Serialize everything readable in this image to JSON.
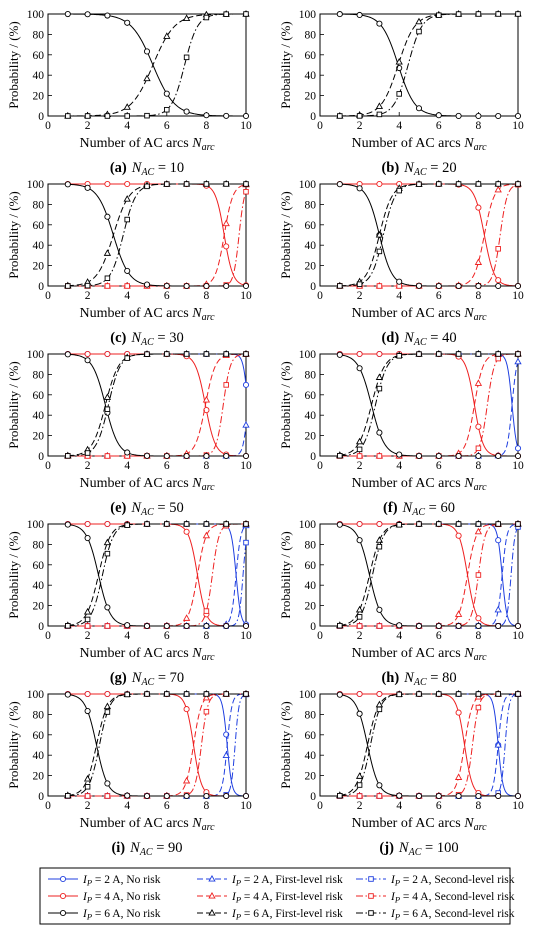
{
  "axis_labels": {
    "ylabel": "Probability / (%)",
    "xlabel_main": "Number of AC arcs ",
    "xlabel_sym": "N",
    "xlabel_sub": "arc"
  },
  "colors": {
    "ip2": "#1f3fe0",
    "ip4": "#ee2020",
    "ip6": "#000000"
  },
  "chart_data": [
    {
      "type": "line",
      "letter": "(a)",
      "nac": "10",
      "xlim": [
        0,
        10
      ],
      "ylim": [
        0,
        100
      ],
      "xticks": [
        0,
        2,
        4,
        6,
        8,
        10
      ],
      "yticks": [
        0,
        20,
        40,
        60,
        80,
        100
      ],
      "curves": [
        {
          "ip": "6 A",
          "risk": "No risk",
          "c": 5.3,
          "s": -0.55
        },
        {
          "ip": "6 A",
          "risk": "First-level risk",
          "c": 5.3,
          "s": 0.55
        },
        {
          "ip": "6 A",
          "risk": "Second-level risk",
          "c": 6.9,
          "s": 0.33
        }
      ]
    },
    {
      "type": "line",
      "letter": "(b)",
      "nac": "20",
      "xlim": [
        0,
        10
      ],
      "ylim": [
        0,
        100
      ],
      "xticks": [
        0,
        2,
        4,
        6,
        8,
        10
      ],
      "yticks": [
        0,
        20,
        40,
        60,
        80,
        100
      ],
      "curves": [
        {
          "ip": "6 A",
          "risk": "No risk",
          "c": 3.95,
          "s": -0.42
        },
        {
          "ip": "6 A",
          "risk": "First-level risk",
          "c": 3.95,
          "s": 0.42
        },
        {
          "ip": "6 A",
          "risk": "Second-level risk",
          "c": 4.45,
          "s": 0.35
        }
      ]
    },
    {
      "type": "line",
      "letter": "(c)",
      "nac": "30",
      "xlim": [
        0,
        10
      ],
      "ylim": [
        0,
        100
      ],
      "xticks": [
        0,
        2,
        4,
        6,
        8,
        10
      ],
      "yticks": [
        0,
        20,
        40,
        60,
        80,
        100
      ],
      "curves": [
        {
          "ip": "4 A",
          "risk": "No risk",
          "c": 8.9,
          "s": -0.22
        },
        {
          "ip": "4 A",
          "risk": "First-level risk",
          "c": 8.9,
          "s": 0.22
        },
        {
          "ip": "4 A",
          "risk": "Second-level risk",
          "c": 9.65,
          "s": 0.14
        },
        {
          "ip": "6 A",
          "risk": "No risk",
          "c": 3.3,
          "s": -0.4
        },
        {
          "ip": "6 A",
          "risk": "First-level risk",
          "c": 3.3,
          "s": 0.4
        },
        {
          "ip": "6 A",
          "risk": "Second-level risk",
          "c": 3.8,
          "s": 0.32
        }
      ]
    },
    {
      "type": "line",
      "letter": "(d)",
      "nac": "40",
      "xlim": [
        0,
        10
      ],
      "ylim": [
        0,
        100
      ],
      "xticks": [
        0,
        2,
        4,
        6,
        8,
        10
      ],
      "yticks": [
        0,
        20,
        40,
        60,
        80,
        100
      ],
      "curves": [
        {
          "ip": "4 A",
          "risk": "No risk",
          "c": 8.3,
          "s": -0.25
        },
        {
          "ip": "4 A",
          "risk": "First-level risk",
          "c": 8.3,
          "s": 0.25
        },
        {
          "ip": "4 A",
          "risk": "Second-level risk",
          "c": 9.1,
          "s": 0.18
        },
        {
          "ip": "6 A",
          "risk": "No risk",
          "c": 3.0,
          "s": -0.32
        },
        {
          "ip": "6 A",
          "risk": "First-level risk",
          "c": 3.0,
          "s": 0.32
        },
        {
          "ip": "6 A",
          "risk": "Second-level risk",
          "c": 3.2,
          "s": 0.3
        }
      ]
    },
    {
      "type": "line",
      "letter": "(e)",
      "nac": "50",
      "xlim": [
        0,
        10
      ],
      "ylim": [
        0,
        100
      ],
      "xticks": [
        0,
        2,
        4,
        6,
        8,
        10
      ],
      "yticks": [
        0,
        20,
        40,
        60,
        80,
        100
      ],
      "curves": [
        {
          "ip": "2 A",
          "risk": "No risk",
          "c": 10.1,
          "s": -0.12
        },
        {
          "ip": "2 A",
          "risk": "First-level risk",
          "c": 10.1,
          "s": 0.12
        },
        {
          "ip": "4 A",
          "risk": "No risk",
          "c": 7.95,
          "s": -0.25
        },
        {
          "ip": "4 A",
          "risk": "First-level risk",
          "c": 7.95,
          "s": 0.25
        },
        {
          "ip": "4 A",
          "risk": "Second-level risk",
          "c": 8.85,
          "s": 0.18
        },
        {
          "ip": "6 A",
          "risk": "No risk",
          "c": 2.9,
          "s": -0.33
        },
        {
          "ip": "6 A",
          "risk": "First-level risk",
          "c": 2.9,
          "s": 0.33
        },
        {
          "ip": "6 A",
          "risk": "Second-level risk",
          "c": 3.05,
          "s": 0.3
        }
      ]
    },
    {
      "type": "line",
      "letter": "(f)",
      "nac": "60",
      "xlim": [
        0,
        10
      ],
      "ylim": [
        0,
        100
      ],
      "xticks": [
        0,
        2,
        4,
        6,
        8,
        10
      ],
      "yticks": [
        0,
        20,
        40,
        60,
        80,
        100
      ],
      "curves": [
        {
          "ip": "2 A",
          "risk": "No risk",
          "c": 9.7,
          "s": -0.12
        },
        {
          "ip": "2 A",
          "risk": "First-level risk",
          "c": 9.7,
          "s": 0.12
        },
        {
          "ip": "4 A",
          "risk": "No risk",
          "c": 7.8,
          "s": -0.22
        },
        {
          "ip": "4 A",
          "risk": "First-level risk",
          "c": 7.8,
          "s": 0.22
        },
        {
          "ip": "4 A",
          "risk": "Second-level risk",
          "c": 8.45,
          "s": 0.18
        },
        {
          "ip": "6 A",
          "risk": "No risk",
          "c": 2.6,
          "s": -0.33
        },
        {
          "ip": "6 A",
          "risk": "First-level risk",
          "c": 2.6,
          "s": 0.33
        },
        {
          "ip": "6 A",
          "risk": "Second-level risk",
          "c": 2.8,
          "s": 0.3
        }
      ]
    },
    {
      "type": "line",
      "letter": "(g)",
      "nac": "70",
      "xlim": [
        0,
        10
      ],
      "ylim": [
        0,
        100
      ],
      "xticks": [
        0,
        2,
        4,
        6,
        8,
        10
      ],
      "yticks": [
        0,
        20,
        40,
        60,
        80,
        100
      ],
      "curves": [
        {
          "ip": "2 A",
          "risk": "No risk",
          "c": 9.5,
          "s": -0.12
        },
        {
          "ip": "2 A",
          "risk": "First-level risk",
          "c": 9.5,
          "s": 0.12
        },
        {
          "ip": "2 A",
          "risk": "Second-level risk",
          "c": 9.85,
          "s": 0.1
        },
        {
          "ip": "4 A",
          "risk": "No risk",
          "c": 7.55,
          "s": -0.22
        },
        {
          "ip": "4 A",
          "risk": "First-level risk",
          "c": 7.55,
          "s": 0.22
        },
        {
          "ip": "4 A",
          "risk": "Second-level risk",
          "c": 8.3,
          "s": 0.17
        },
        {
          "ip": "6 A",
          "risk": "No risk",
          "c": 2.55,
          "s": -0.3
        },
        {
          "ip": "6 A",
          "risk": "First-level risk",
          "c": 2.55,
          "s": 0.3
        },
        {
          "ip": "6 A",
          "risk": "Second-level risk",
          "c": 2.75,
          "s": 0.28
        }
      ]
    },
    {
      "type": "line",
      "letter": "(h)",
      "nac": "80",
      "xlim": [
        0,
        10
      ],
      "ylim": [
        0,
        100
      ],
      "xticks": [
        0,
        2,
        4,
        6,
        8,
        10
      ],
      "yticks": [
        0,
        20,
        40,
        60,
        80,
        100
      ],
      "curves": [
        {
          "ip": "2 A",
          "risk": "No risk",
          "c": 9.2,
          "s": -0.12
        },
        {
          "ip": "2 A",
          "risk": "First-level risk",
          "c": 9.2,
          "s": 0.12
        },
        {
          "ip": "2 A",
          "risk": "Second-level risk",
          "c": 9.65,
          "s": 0.1
        },
        {
          "ip": "4 A",
          "risk": "No risk",
          "c": 7.45,
          "s": -0.22
        },
        {
          "ip": "4 A",
          "risk": "First-level risk",
          "c": 7.45,
          "s": 0.22
        },
        {
          "ip": "4 A",
          "risk": "Second-level risk",
          "c": 8.0,
          "s": 0.17
        },
        {
          "ip": "6 A",
          "risk": "No risk",
          "c": 2.5,
          "s": -0.3
        },
        {
          "ip": "6 A",
          "risk": "First-level risk",
          "c": 2.5,
          "s": 0.3
        },
        {
          "ip": "6 A",
          "risk": "Second-level risk",
          "c": 2.65,
          "s": 0.28
        }
      ]
    },
    {
      "type": "line",
      "letter": "(i)",
      "nac": "90",
      "xlim": [
        0,
        10
      ],
      "ylim": [
        0,
        100
      ],
      "xticks": [
        0,
        2,
        4,
        6,
        8,
        10
      ],
      "yticks": [
        0,
        20,
        40,
        60,
        80,
        100
      ],
      "curves": [
        {
          "ip": "2 A",
          "risk": "No risk",
          "c": 9.05,
          "s": -0.12
        },
        {
          "ip": "2 A",
          "risk": "First-level risk",
          "c": 9.05,
          "s": 0.12
        },
        {
          "ip": "2 A",
          "risk": "Second-level risk",
          "c": 9.45,
          "s": 0.1
        },
        {
          "ip": "4 A",
          "risk": "No risk",
          "c": 7.35,
          "s": -0.2
        },
        {
          "ip": "4 A",
          "risk": "First-level risk",
          "c": 7.35,
          "s": 0.2
        },
        {
          "ip": "4 A",
          "risk": "Second-level risk",
          "c": 7.75,
          "s": 0.16
        },
        {
          "ip": "6 A",
          "risk": "No risk",
          "c": 2.45,
          "s": -0.28
        },
        {
          "ip": "6 A",
          "risk": "First-level risk",
          "c": 2.45,
          "s": 0.28
        },
        {
          "ip": "6 A",
          "risk": "Second-level risk",
          "c": 2.6,
          "s": 0.26
        }
      ]
    },
    {
      "type": "line",
      "letter": "(j)",
      "nac": "100",
      "xlim": [
        0,
        10
      ],
      "ylim": [
        0,
        100
      ],
      "xticks": [
        0,
        2,
        4,
        6,
        8,
        10
      ],
      "yticks": [
        0,
        20,
        40,
        60,
        80,
        100
      ],
      "curves": [
        {
          "ip": "2 A",
          "risk": "No risk",
          "c": 9.0,
          "s": -0.12
        },
        {
          "ip": "2 A",
          "risk": "First-level risk",
          "c": 9.0,
          "s": 0.12
        },
        {
          "ip": "2 A",
          "risk": "Second-level risk",
          "c": 9.35,
          "s": 0.1
        },
        {
          "ip": "4 A",
          "risk": "No risk",
          "c": 7.3,
          "s": -0.2
        },
        {
          "ip": "4 A",
          "risk": "First-level risk",
          "c": 7.3,
          "s": 0.2
        },
        {
          "ip": "4 A",
          "risk": "Second-level risk",
          "c": 7.7,
          "s": 0.16
        },
        {
          "ip": "6 A",
          "risk": "No risk",
          "c": 2.4,
          "s": -0.28
        },
        {
          "ip": "6 A",
          "risk": "First-level risk",
          "c": 2.4,
          "s": 0.28
        },
        {
          "ip": "6 A",
          "risk": "Second-level risk",
          "c": 2.55,
          "s": 0.26
        }
      ]
    }
  ],
  "legend": {
    "entries": [
      {
        "ip": "2 A",
        "risk": "No risk",
        "label": " = 2 A, No risk"
      },
      {
        "ip": "2 A",
        "risk": "First-level risk",
        "label": " = 2 A, First-level risk"
      },
      {
        "ip": "2 A",
        "risk": "Second-level risk",
        "label": " = 2 A, Second-level risk"
      },
      {
        "ip": "4 A",
        "risk": "No risk",
        "label": " = 4 A, No risk"
      },
      {
        "ip": "4 A",
        "risk": "First-level risk",
        "label": " = 4 A, First-level risk"
      },
      {
        "ip": "4 A",
        "risk": "Second-level risk",
        "label": " = 4 A, Second-level risk"
      },
      {
        "ip": "6 A",
        "risk": "No risk",
        "label": " = 6 A, No risk"
      },
      {
        "ip": "6 A",
        "risk": "First-level risk",
        "label": " = 6 A, First-level risk"
      },
      {
        "ip": "6 A",
        "risk": "Second-level risk",
        "label": " = 6 A, Second-level risk"
      }
    ]
  }
}
